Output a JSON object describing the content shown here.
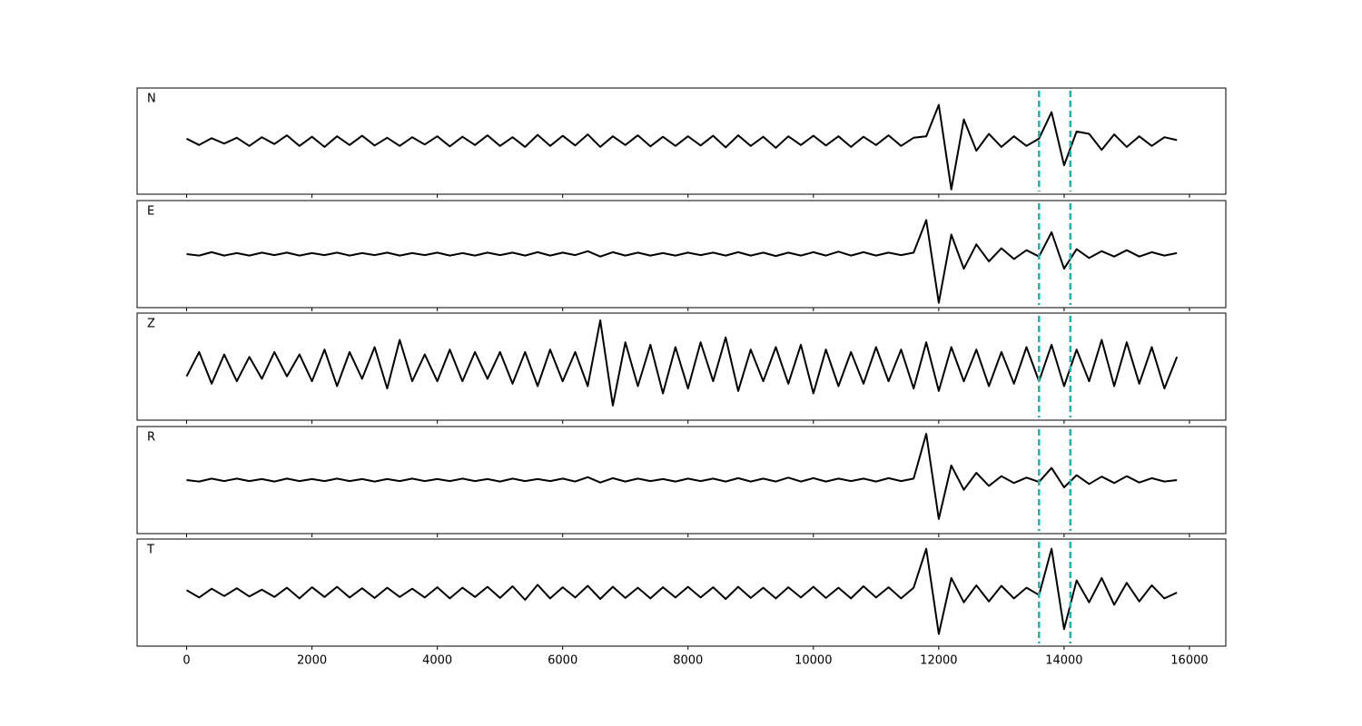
{
  "chart_data": {
    "type": "line",
    "x": [
      0,
      200,
      400,
      600,
      800,
      1000,
      1200,
      1400,
      1600,
      1800,
      2000,
      2200,
      2400,
      2600,
      2800,
      3000,
      3200,
      3400,
      3600,
      3800,
      4000,
      4200,
      4400,
      4600,
      4800,
      5000,
      5200,
      5400,
      5600,
      5800,
      6000,
      6200,
      6400,
      6600,
      6800,
      7000,
      7200,
      7400,
      7600,
      7800,
      8000,
      8200,
      8400,
      8600,
      8800,
      9000,
      9200,
      9400,
      9600,
      9800,
      10000,
      10200,
      10400,
      10600,
      10800,
      11000,
      11200,
      11400,
      11600,
      11800,
      12000,
      12200,
      12400,
      12600,
      12800,
      13000,
      13200,
      13400,
      13600,
      13800,
      14000,
      14200,
      14400,
      14600,
      14800,
      15000,
      15200,
      15400,
      15600,
      15800
    ],
    "series": [
      {
        "name": "N",
        "color": "#000000",
        "values": [
          0.05,
          -0.08,
          0.06,
          -0.05,
          0.07,
          -0.1,
          0.08,
          -0.06,
          0.12,
          -0.1,
          0.09,
          -0.12,
          0.1,
          -0.08,
          0.11,
          -0.09,
          0.07,
          -0.1,
          0.08,
          -0.07,
          0.1,
          -0.11,
          0.09,
          -0.08,
          0.12,
          -0.1,
          0.08,
          -0.12,
          0.13,
          -0.1,
          0.11,
          -0.09,
          0.14,
          -0.12,
          0.1,
          -0.08,
          0.12,
          -0.11,
          0.09,
          -0.1,
          0.1,
          -0.09,
          0.11,
          -0.13,
          0.12,
          -0.1,
          0.09,
          -0.14,
          0.1,
          -0.08,
          0.11,
          -0.09,
          0.1,
          -0.12,
          0.09,
          -0.08,
          0.12,
          -0.1,
          0.07,
          0.1,
          0.75,
          -1.0,
          0.45,
          -0.2,
          0.15,
          -0.12,
          0.1,
          -0.1,
          0.05,
          0.6,
          -0.5,
          0.2,
          0.15,
          -0.18,
          0.14,
          -0.12,
          0.1,
          -0.1,
          0.08,
          0.02
        ]
      },
      {
        "name": "E",
        "color": "#000000",
        "values": [
          0.0,
          -0.03,
          0.04,
          -0.03,
          0.02,
          -0.03,
          0.03,
          -0.02,
          0.03,
          -0.03,
          0.02,
          -0.02,
          0.03,
          -0.03,
          0.02,
          -0.02,
          0.03,
          -0.03,
          0.02,
          -0.02,
          0.03,
          -0.03,
          0.02,
          -0.03,
          0.03,
          -0.02,
          0.03,
          -0.03,
          0.04,
          -0.03,
          0.03,
          -0.02,
          0.06,
          -0.05,
          0.04,
          -0.03,
          0.03,
          -0.03,
          0.02,
          -0.03,
          0.03,
          -0.02,
          0.03,
          -0.03,
          0.04,
          -0.03,
          0.03,
          -0.04,
          0.03,
          -0.03,
          0.04,
          -0.03,
          0.05,
          -0.03,
          0.04,
          -0.03,
          0.03,
          -0.02,
          0.03,
          0.7,
          -1.0,
          0.4,
          -0.3,
          0.2,
          -0.15,
          0.12,
          -0.1,
          0.08,
          -0.05,
          0.45,
          -0.3,
          0.1,
          -0.08,
          0.06,
          -0.05,
          0.08,
          -0.05,
          0.04,
          -0.03,
          0.02
        ]
      },
      {
        "name": "Z",
        "color": "#000000",
        "values": [
          -0.2,
          0.3,
          -0.35,
          0.25,
          -0.3,
          0.2,
          -0.25,
          0.3,
          -0.2,
          0.25,
          -0.3,
          0.35,
          -0.4,
          0.3,
          -0.25,
          0.4,
          -0.45,
          0.55,
          -0.3,
          0.25,
          -0.3,
          0.35,
          -0.3,
          0.3,
          -0.25,
          0.3,
          -0.35,
          0.3,
          -0.4,
          0.35,
          -0.3,
          0.3,
          -0.4,
          0.95,
          -0.8,
          0.5,
          -0.4,
          0.45,
          -0.55,
          0.4,
          -0.45,
          0.5,
          -0.3,
          0.6,
          -0.5,
          0.35,
          -0.3,
          0.4,
          -0.35,
          0.45,
          -0.55,
          0.35,
          -0.4,
          0.3,
          -0.35,
          0.4,
          -0.3,
          0.35,
          -0.45,
          0.5,
          -0.5,
          0.4,
          -0.3,
          0.35,
          -0.4,
          0.3,
          -0.35,
          0.4,
          -0.3,
          0.45,
          -0.4,
          0.35,
          -0.3,
          0.55,
          -0.4,
          0.5,
          -0.35,
          0.4,
          -0.45,
          0.2
        ]
      },
      {
        "name": "R",
        "color": "#000000",
        "values": [
          0.0,
          -0.03,
          0.03,
          -0.02,
          0.03,
          -0.02,
          0.02,
          -0.03,
          0.03,
          -0.02,
          0.02,
          -0.02,
          0.03,
          -0.02,
          0.02,
          -0.03,
          0.02,
          -0.02,
          0.03,
          -0.02,
          0.02,
          -0.02,
          0.03,
          -0.02,
          0.02,
          -0.03,
          0.03,
          -0.02,
          0.02,
          -0.02,
          0.03,
          -0.03,
          0.06,
          -0.05,
          0.04,
          -0.03,
          0.03,
          -0.02,
          0.02,
          -0.03,
          0.03,
          -0.02,
          0.03,
          -0.03,
          0.04,
          -0.03,
          0.03,
          -0.03,
          0.05,
          -0.03,
          0.04,
          -0.03,
          0.03,
          -0.02,
          0.03,
          -0.03,
          0.04,
          -0.02,
          0.03,
          0.95,
          -0.8,
          0.3,
          -0.2,
          0.15,
          -0.12,
          0.08,
          -0.06,
          0.05,
          -0.04,
          0.25,
          -0.15,
          0.1,
          -0.08,
          0.07,
          -0.06,
          0.08,
          -0.05,
          0.04,
          -0.03,
          0.0
        ]
      },
      {
        "name": "T",
        "color": "#000000",
        "values": [
          0.05,
          -0.1,
          0.08,
          -0.07,
          0.09,
          -0.08,
          0.06,
          -0.09,
          0.1,
          -0.12,
          0.11,
          -0.09,
          0.12,
          -0.1,
          0.09,
          -0.11,
          0.1,
          -0.09,
          0.08,
          -0.1,
          0.11,
          -0.12,
          0.1,
          -0.09,
          0.12,
          -0.11,
          0.13,
          -0.15,
          0.16,
          -0.12,
          0.11,
          -0.1,
          0.14,
          -0.13,
          0.12,
          -0.11,
          0.1,
          -0.12,
          0.11,
          -0.1,
          0.12,
          -0.1,
          0.11,
          -0.13,
          0.12,
          -0.11,
          0.1,
          -0.12,
          0.11,
          -0.1,
          0.12,
          -0.11,
          0.1,
          -0.12,
          0.13,
          -0.1,
          0.11,
          -0.12,
          0.1,
          0.9,
          -0.85,
          0.3,
          -0.2,
          0.15,
          -0.18,
          0.14,
          -0.12,
          0.1,
          -0.05,
          0.9,
          -0.75,
          0.25,
          -0.2,
          0.3,
          -0.25,
          0.2,
          -0.18,
          0.15,
          -0.12,
          0.0
        ]
      }
    ],
    "vlines": {
      "x": [
        13600,
        14100
      ],
      "color": "#00bfbf"
    },
    "xlim": [
      -790,
      16580
    ],
    "xticks": [
      0,
      2000,
      4000,
      6000,
      8000,
      10000,
      12000,
      14000,
      16000
    ],
    "ylim": [
      -1.1,
      1.1
    ]
  }
}
